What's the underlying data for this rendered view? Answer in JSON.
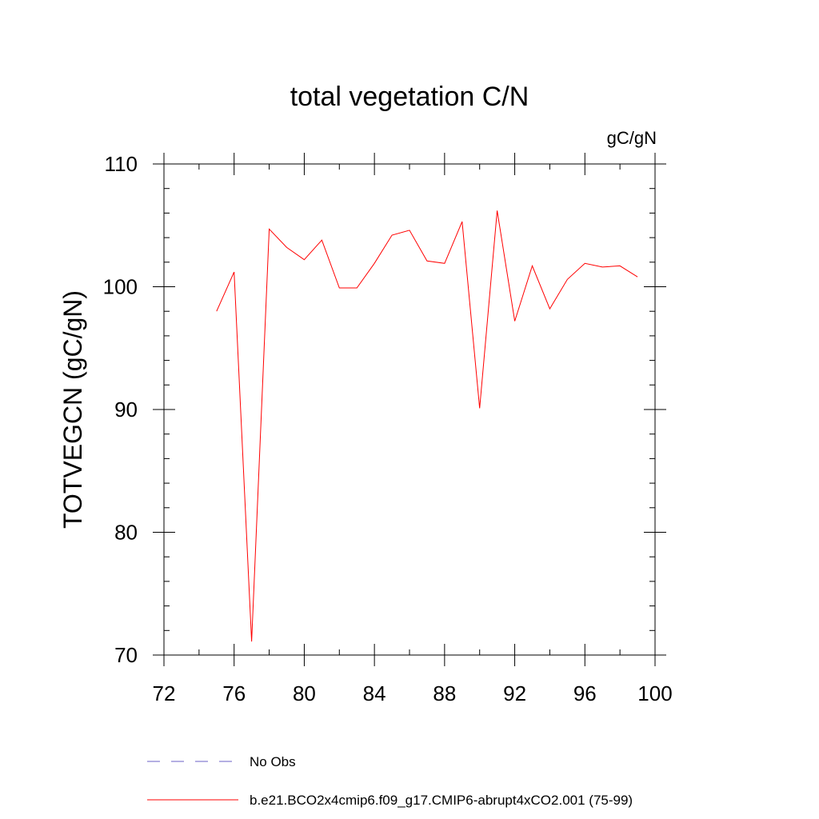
{
  "chart_data": {
    "type": "line",
    "title": "total vegetation C/N",
    "units_label": "gC/gN",
    "xlabel": "",
    "ylabel": "TOTVEGCN  (gC/gN)",
    "xlim": [
      72,
      100
    ],
    "ylim": [
      70,
      110
    ],
    "x_ticks": [
      72,
      76,
      80,
      84,
      88,
      92,
      96,
      100
    ],
    "y_ticks": [
      70,
      80,
      90,
      100,
      110
    ],
    "x_minor_step": 2,
    "y_minor_step": 2,
    "grid": false,
    "legend_position": "bottom",
    "series": [
      {
        "name": "b.e21.BCO2x4cmip6.f09_g17.CMIP6-abrupt4xCO2.001 (75-99)",
        "color": "#ff0000",
        "style": "solid",
        "x": [
          75,
          76,
          77,
          78,
          79,
          80,
          81,
          82,
          83,
          84,
          85,
          86,
          87,
          88,
          89,
          90,
          91,
          92,
          93,
          94,
          95,
          96,
          97,
          98,
          99
        ],
        "y": [
          98.0,
          101.2,
          71.1,
          104.7,
          103.2,
          102.2,
          103.8,
          99.9,
          99.9,
          101.9,
          104.2,
          104.6,
          102.1,
          101.9,
          105.3,
          90.1,
          106.2,
          97.2,
          101.7,
          98.2,
          100.6,
          101.9,
          101.6,
          101.7,
          100.8
        ]
      }
    ],
    "legend": [
      {
        "label": "No Obs",
        "color": "#6b62c7",
        "style": "dashed"
      },
      {
        "label": "b.e21.BCO2x4cmip6.f09_g17.CMIP6-abrupt4xCO2.001 (75-99)",
        "color": "#ff0000",
        "style": "solid"
      }
    ]
  }
}
